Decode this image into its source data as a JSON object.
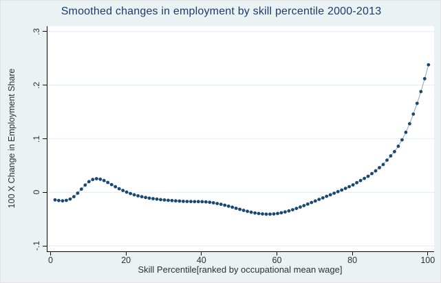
{
  "figure": {
    "title": "Smoothed changes in employment by skill percentile 2000-2013"
  },
  "chart_data": {
    "type": "line",
    "title": "Smoothed changes in employment by skill percentile 2000-2013",
    "xlabel": "Skill Percentile[ranked by occupational mean wage]",
    "ylabel": "100 X Change in Employment Share",
    "xlim": [
      -1,
      101.5
    ],
    "ylim": [
      -0.11,
      0.31
    ],
    "grid": true,
    "legend": false,
    "xticks": [
      0,
      20,
      40,
      60,
      80,
      100
    ],
    "yticks": [
      {
        "value": 0.3,
        "label": ".3"
      },
      {
        "value": 0.2,
        "label": ".2"
      },
      {
        "value": 0.1,
        "label": ".1"
      },
      {
        "value": 0.0,
        "label": "0"
      },
      {
        "value": -0.1,
        "label": "-.1"
      }
    ],
    "marker_shape": "filled-circle",
    "colors": {
      "background": "#eaf2f3",
      "plot_background": "#ffffff",
      "axis": "#000000",
      "grid": "#e6eef2",
      "marker": "#1a476f",
      "line": "#8ba4bc",
      "title_text": "#1c3a6e",
      "tick_text": "#2f2f2f"
    },
    "series": [
      {
        "name": "smoothed-employment-change",
        "x_start": 1,
        "x_step": 1,
        "values": [
          -0.014,
          -0.0152,
          -0.0158,
          -0.015,
          -0.0125,
          -0.008,
          -0.0015,
          0.006,
          0.0135,
          0.02,
          0.024,
          0.0255,
          0.0245,
          0.022,
          0.0185,
          0.0145,
          0.0105,
          0.0068,
          0.0035,
          0.0005,
          -0.0022,
          -0.0045,
          -0.0065,
          -0.0082,
          -0.0096,
          -0.0108,
          -0.0118,
          -0.0127,
          -0.0135,
          -0.0142,
          -0.0148,
          -0.0154,
          -0.0159,
          -0.0163,
          -0.0167,
          -0.017,
          -0.0172,
          -0.0173,
          -0.0173,
          -0.0174,
          -0.0178,
          -0.0185,
          -0.0195,
          -0.0208,
          -0.0223,
          -0.024,
          -0.0258,
          -0.0277,
          -0.0297,
          -0.0317,
          -0.0336,
          -0.0354,
          -0.037,
          -0.0384,
          -0.0395,
          -0.0403,
          -0.0407,
          -0.0407,
          -0.0403,
          -0.0394,
          -0.0381,
          -0.0365,
          -0.0346,
          -0.0324,
          -0.03,
          -0.0274,
          -0.0247,
          -0.0219,
          -0.019,
          -0.0161,
          -0.0132,
          -0.0103,
          -0.0074,
          -0.0045,
          -0.0016,
          0.0013,
          0.0043,
          0.0074,
          0.0106,
          0.014,
          0.018,
          0.022,
          0.026,
          0.03,
          0.035,
          0.04,
          0.046,
          0.052,
          0.06,
          0.068,
          0.076,
          0.086,
          0.098,
          0.112,
          0.128,
          0.146,
          0.166,
          0.188,
          0.212,
          0.238
        ]
      }
    ]
  }
}
